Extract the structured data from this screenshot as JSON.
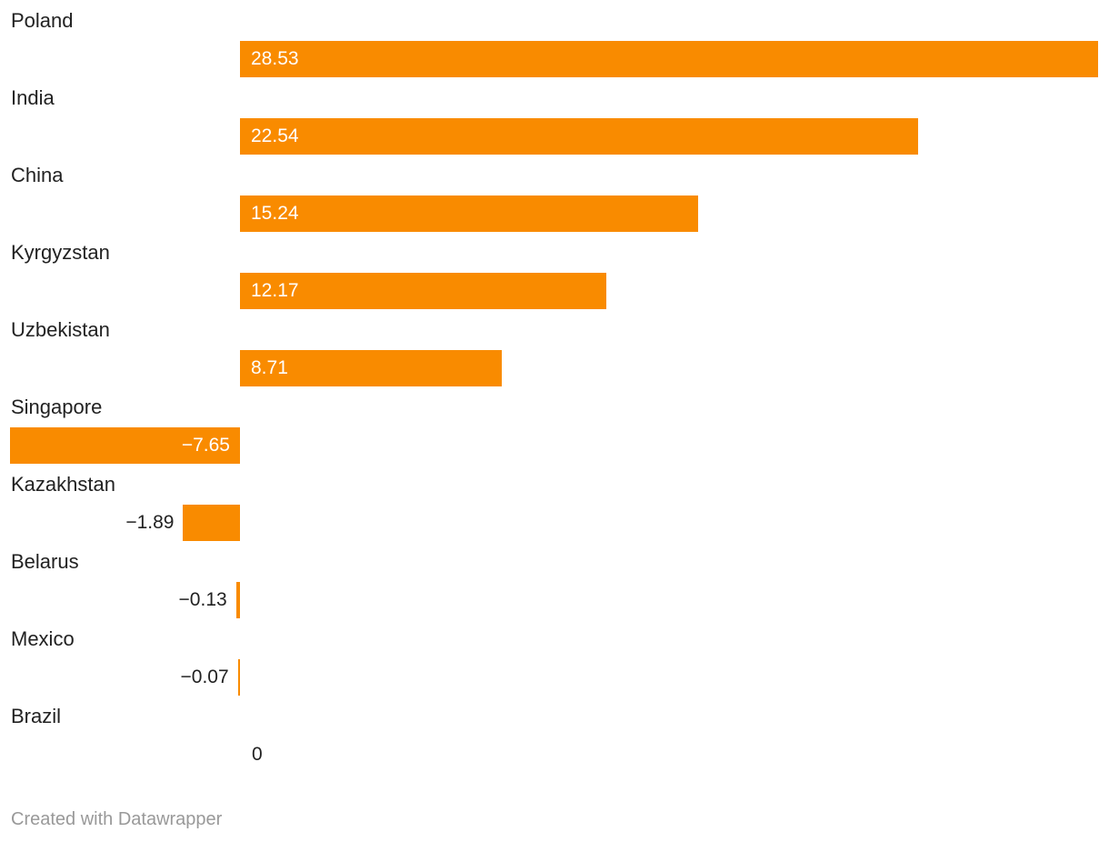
{
  "chart_data": {
    "type": "bar",
    "orientation": "horizontal",
    "title": "",
    "xlabel": "",
    "ylabel": "",
    "grid": false,
    "legend": false,
    "xlim": [
      -7.65,
      28.53
    ],
    "categories": [
      "Poland",
      "India",
      "China",
      "Kyrgyzstan",
      "Uzbekistan",
      "Singapore",
      "Kazakhstan",
      "Belarus",
      "Mexico",
      "Brazil"
    ],
    "values": [
      28.53,
      22.54,
      15.24,
      12.17,
      8.71,
      -7.65,
      -1.89,
      -0.13,
      -0.07,
      0
    ],
    "value_labels": [
      "28.53",
      "22.54",
      "15.24",
      "12.17",
      "8.71",
      "−7.65",
      "−1.89",
      "−0.13",
      "−0.07",
      "0"
    ]
  },
  "colors": {
    "bar": "#f98b00",
    "category_text": "#222222",
    "value_inside": "#ffffff",
    "value_outside": "#222222",
    "footer_text": "#999999",
    "background": "#ffffff"
  },
  "footer": {
    "credit": "Created with Datawrapper"
  }
}
